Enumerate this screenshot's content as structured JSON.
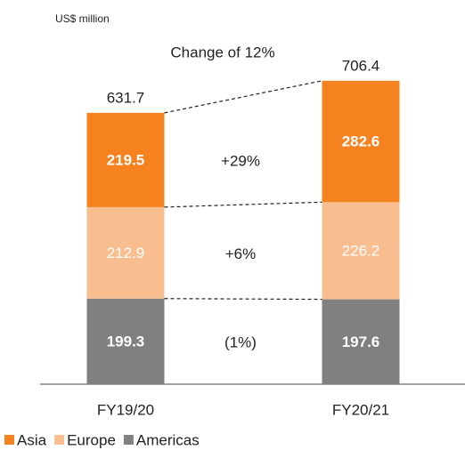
{
  "chart_data": {
    "type": "stacked_bar",
    "unit_label": "US$ million",
    "title": "Change of 12%",
    "categories": [
      "FY19/20",
      "FY20/21"
    ],
    "totals": [
      631.7,
      706.4
    ],
    "series": [
      {
        "name": "Asia",
        "color": "#f5821f",
        "values": [
          219.5,
          282.6
        ],
        "change": "+29%"
      },
      {
        "name": "Europe",
        "color": "#f9be8f",
        "values": [
          212.9,
          226.2
        ],
        "change": "+6%"
      },
      {
        "name": "Americas",
        "color": "#808080",
        "values": [
          199.3,
          197.6
        ],
        "change": "(1%)"
      }
    ]
  }
}
